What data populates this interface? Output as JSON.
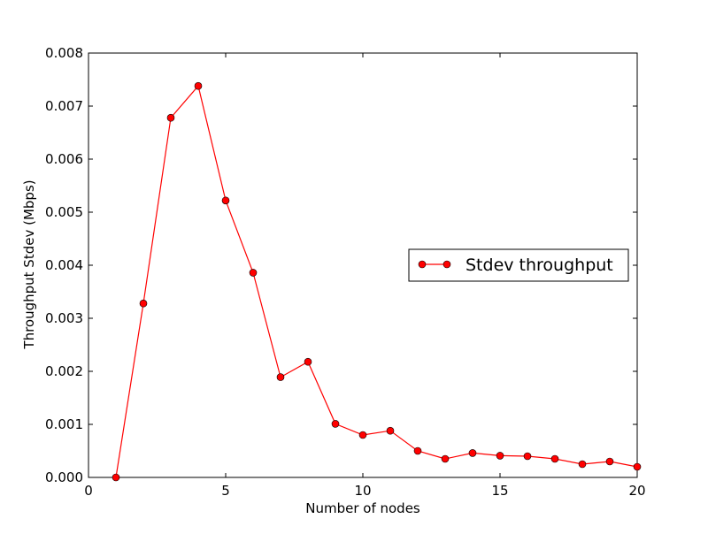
{
  "chart_data": {
    "type": "line",
    "title": "",
    "xlabel": "Number of nodes",
    "ylabel": "Throughput Stdev (Mbps)",
    "xlim": [
      0,
      20
    ],
    "ylim": [
      0,
      0.008
    ],
    "grid": false,
    "legend_position": "right",
    "x_ticks": [
      0,
      5,
      10,
      15,
      20
    ],
    "x_tick_labels": [
      "0",
      "5",
      "10",
      "15",
      "20"
    ],
    "y_ticks": [
      0,
      0.001,
      0.002,
      0.003,
      0.004,
      0.005,
      0.006,
      0.007,
      0.008
    ],
    "y_tick_labels": [
      "0.000",
      "0.001",
      "0.002",
      "0.003",
      "0.004",
      "0.005",
      "0.006",
      "0.007",
      "0.008"
    ],
    "series": [
      {
        "name": "Stdev throughput",
        "color": "#ff0000",
        "marker": "circle",
        "x": [
          1,
          2,
          3,
          4,
          5,
          6,
          7,
          8,
          9,
          10,
          11,
          12,
          13,
          14,
          15,
          16,
          17,
          18,
          19,
          20
        ],
        "y": [
          0.0,
          0.00328,
          0.00678,
          0.00738,
          0.00522,
          0.00386,
          0.00189,
          0.00218,
          0.00101,
          0.0008,
          0.00088,
          0.0005,
          0.00035,
          0.00046,
          0.00041,
          0.0004,
          0.00035,
          0.00025,
          0.0003,
          0.0002
        ]
      }
    ]
  }
}
